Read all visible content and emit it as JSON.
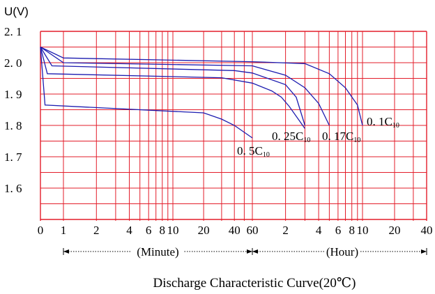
{
  "chart_data": {
    "type": "line",
    "title": "Discharge Characteristic Curve(20℃)",
    "ylabel": "U(V)",
    "ylim": [
      1.5,
      2.1
    ],
    "y_ticks": [
      "2. 1",
      "2. 0",
      "1. 9",
      "1. 8",
      "1. 7",
      "1. 6"
    ],
    "y_tick_values": [
      2.1,
      2.0,
      1.9,
      1.8,
      1.7,
      1.6
    ],
    "x_scale": "log (minutes, then hours)",
    "x_ticks": [
      "0",
      "1",
      "2",
      "4",
      "6",
      "8",
      "10",
      "20",
      "40",
      "60",
      "2",
      "4",
      "6",
      "8",
      "10",
      "20",
      "40"
    ],
    "x_tick_minutes": [
      0,
      1,
      2,
      4,
      6,
      8,
      10,
      20,
      40,
      60,
      120,
      240,
      360,
      480,
      600,
      1200,
      2400
    ],
    "x_groups": [
      {
        "label": "(Minute)",
        "from_minutes": 1,
        "to_minutes": 60
      },
      {
        "label": "(Hour)",
        "from_minutes": 60,
        "to_minutes": 2400
      }
    ],
    "grid": true,
    "series": [
      {
        "name": "0. 1C",
        "name_sub": "10",
        "points": [
          [
            0,
            2.05
          ],
          [
            1,
            2.015
          ],
          [
            60,
            2.003
          ],
          [
            180,
            1.997
          ],
          [
            300,
            1.965
          ],
          [
            420,
            1.92
          ],
          [
            540,
            1.865
          ],
          [
            600,
            1.8
          ]
        ]
      },
      {
        "name": "0. 17C",
        "name_sub": "10",
        "points": [
          [
            0,
            2.05
          ],
          [
            1,
            2.0
          ],
          [
            60,
            1.99
          ],
          [
            120,
            1.96
          ],
          [
            180,
            1.92
          ],
          [
            240,
            1.87
          ],
          [
            300,
            1.8
          ]
        ]
      },
      {
        "name": "0. 25C",
        "name_sub": "10",
        "points": [
          [
            0,
            2.05
          ],
          [
            0.5,
            1.99
          ],
          [
            40,
            1.975
          ],
          [
            60,
            1.967
          ],
          [
            120,
            1.93
          ],
          [
            150,
            1.89
          ],
          [
            180,
            1.8
          ]
        ]
      },
      {
        "name": "0. 5C",
        "name_sub": "10",
        "points": [
          [
            0,
            2.05
          ],
          [
            0.3,
            1.965
          ],
          [
            30,
            1.952
          ],
          [
            60,
            1.935
          ],
          [
            90,
            1.91
          ],
          [
            110,
            1.89
          ],
          [
            130,
            1.86
          ],
          [
            180,
            1.79
          ]
        ]
      },
      {
        "name": "",
        "points": [
          [
            0,
            2.05
          ],
          [
            0.2,
            1.865
          ],
          [
            20,
            1.84
          ],
          [
            30,
            1.82
          ],
          [
            40,
            1.8
          ],
          [
            60,
            1.76
          ]
        ]
      }
    ]
  }
}
